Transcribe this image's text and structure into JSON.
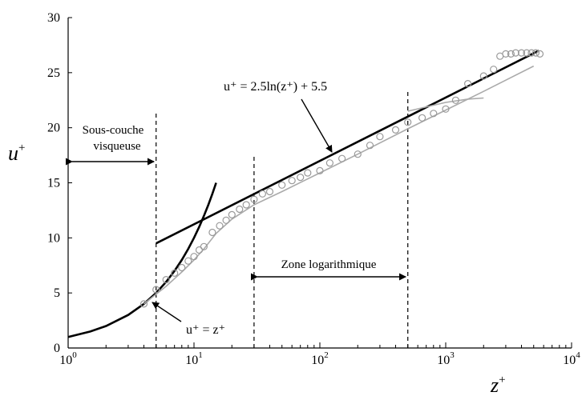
{
  "chart_data": {
    "type": "scatter",
    "x_scale": "log",
    "xlim": [
      1,
      10000
    ],
    "ylim": [
      0,
      30
    ],
    "x_ticks": [
      {
        "base": "10",
        "exp": "0"
      },
      {
        "base": "10",
        "exp": "1"
      },
      {
        "base": "10",
        "exp": "2"
      },
      {
        "base": "10",
        "exp": "3"
      },
      {
        "base": "10",
        "exp": "4"
      }
    ],
    "y_ticks": [
      "0",
      "5",
      "10",
      "15",
      "20",
      "25",
      "30"
    ],
    "xlabel": {
      "base": "z",
      "sup": "+"
    },
    "ylabel": {
      "base": "u",
      "sup": "+"
    },
    "grid": false,
    "series": [
      {
        "kind": "line",
        "equation": "u⁺ = z⁺",
        "color": "#000000",
        "x": [
          1,
          1.5,
          2,
          3,
          4,
          5,
          6,
          7,
          8,
          9,
          10,
          11,
          12,
          13,
          14,
          15
        ],
        "y": [
          1,
          1.5,
          2,
          3,
          4,
          5,
          6,
          7,
          8,
          9,
          10,
          11,
          12,
          13,
          14,
          15
        ]
      },
      {
        "kind": "line",
        "equation": "u⁺ = 2.5ln(z⁺) + 5.5",
        "color": "#000000",
        "x": [
          5,
          5500
        ],
        "y": [
          9.5,
          27
        ]
      },
      {
        "kind": "line",
        "color": "#aaaaaa",
        "x": [
          4,
          6,
          8,
          10,
          12,
          15,
          20,
          30,
          50,
          100,
          200,
          500,
          1000,
          2000,
          5000
        ],
        "y": [
          4,
          5.6,
          6.9,
          8.0,
          9.0,
          10.4,
          11.7,
          13.0,
          14.2,
          15.9,
          17.6,
          19.9,
          21.6,
          23.3,
          25.6
        ]
      },
      {
        "kind": "line",
        "color": "#aaaaaa",
        "x": [
          500,
          1000,
          1500,
          2000
        ],
        "y": [
          21.5,
          22.3,
          22.6,
          22.7
        ]
      },
      {
        "kind": "scatter",
        "marker": "open-circle",
        "color": "#999999",
        "x": [
          4,
          5,
          6,
          7,
          8,
          9,
          10,
          11,
          12,
          14,
          16,
          18,
          20,
          23,
          26,
          30,
          35,
          40,
          50,
          60,
          70,
          80,
          100,
          120,
          150,
          200,
          250,
          300,
          400,
          500,
          650,
          800,
          1000,
          1200,
          1500,
          2000,
          2400,
          2700,
          3000,
          3300,
          3600,
          4000,
          4400,
          4800,
          5200,
          5600
        ],
        "y": [
          4,
          5.3,
          6.2,
          6.8,
          7.3,
          7.9,
          8.3,
          8.9,
          9.2,
          10.5,
          11.1,
          11.6,
          12.1,
          12.6,
          13.0,
          13.5,
          14.0,
          14.2,
          14.8,
          15.2,
          15.5,
          15.9,
          16.1,
          16.8,
          17.2,
          17.6,
          18.4,
          19.2,
          19.8,
          20.5,
          20.9,
          21.3,
          21.7,
          22.5,
          24.0,
          24.7,
          25.3,
          26.5,
          26.7,
          26.7,
          26.8,
          26.8,
          26.8,
          26.8,
          26.8,
          26.7
        ]
      }
    ],
    "annotations": {
      "visc_line1": "Sous-couche",
      "visc_line2": "visqueuse",
      "log_zone": "Zone logarithmique",
      "eq_log": "u⁺ = 2.5ln(z⁺) + 5.5",
      "eq_lin": "u⁺ = z⁺"
    },
    "vlines": [
      5,
      30,
      500
    ]
  }
}
